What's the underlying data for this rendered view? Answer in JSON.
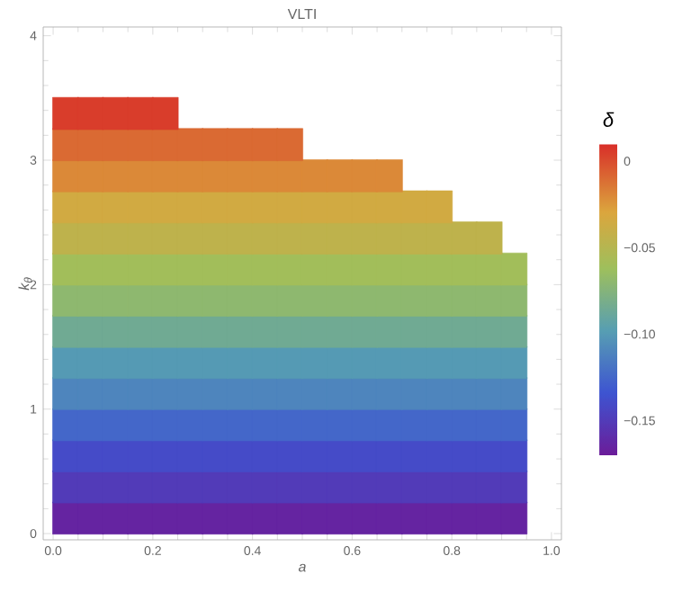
{
  "chart_data": {
    "type": "scatter",
    "title": "VLTI",
    "xlabel": "a",
    "ylabel": "k$_{θ}$",
    "clabel": "δ",
    "marker": "square",
    "xlim": [
      -0.02,
      1.02
    ],
    "ylim": [
      -0.05,
      4.07
    ],
    "xticks": [
      {
        "value": 0,
        "label": "0.0"
      },
      {
        "value": 0.2,
        "label": "0.2"
      },
      {
        "value": 0.4,
        "label": "0.4"
      },
      {
        "value": 0.6,
        "label": "0.6"
      },
      {
        "value": 0.8,
        "label": "0.8"
      },
      {
        "value": 1,
        "label": "1.0"
      }
    ],
    "yticks": [
      0,
      1,
      2,
      3,
      4
    ],
    "clim": [
      -0.17,
      0.01
    ],
    "cticks": [
      {
        "value": 0,
        "label": "0"
      },
      {
        "value": -0.05,
        "label": "−0.05"
      },
      {
        "value": -0.1,
        "label": "−0.10"
      },
      {
        "value": -0.15,
        "label": "−0.15"
      }
    ],
    "series": [
      {
        "x": [
          0.025,
          0.075,
          0.125,
          0.175,
          0.225,
          0.275,
          0.325,
          0.375,
          0.425,
          0.475,
          0.525,
          0.575,
          0.625,
          0.675,
          0.725,
          0.775,
          0.825,
          0.875,
          0.925
        ],
        "values": [
          0.125,
          0.125,
          0.125,
          0.125,
          0.125,
          0.125,
          0.125,
          0.125,
          0.125,
          0.125,
          0.125,
          0.125,
          0.125,
          0.125,
          0.125,
          0.125,
          0.125,
          0.125,
          0.125
        ],
        "cvalues": [
          -0.165,
          -0.165,
          -0.165,
          -0.165,
          -0.165,
          -0.165,
          -0.165,
          -0.165,
          -0.165,
          -0.165,
          -0.165,
          -0.165,
          -0.165,
          -0.165,
          -0.165,
          -0.165,
          -0.165,
          -0.165,
          -0.165
        ]
      },
      {
        "x": [
          0.025,
          0.075,
          0.125,
          0.175,
          0.225,
          0.275,
          0.325,
          0.375,
          0.425,
          0.475,
          0.525,
          0.575,
          0.625,
          0.675,
          0.725,
          0.775,
          0.825,
          0.875,
          0.925
        ],
        "values": [
          0.375,
          0.375,
          0.375,
          0.375,
          0.375,
          0.375,
          0.375,
          0.375,
          0.375,
          0.375,
          0.375,
          0.375,
          0.375,
          0.375,
          0.375,
          0.375,
          0.375,
          0.375,
          0.375
        ],
        "cvalues": [
          -0.15,
          -0.15,
          -0.15,
          -0.15,
          -0.15,
          -0.15,
          -0.15,
          -0.15,
          -0.15,
          -0.15,
          -0.15,
          -0.15,
          -0.15,
          -0.15,
          -0.15,
          -0.15,
          -0.15,
          -0.15,
          -0.15
        ]
      },
      {
        "x": [
          0.025,
          0.075,
          0.125,
          0.175,
          0.225,
          0.275,
          0.325,
          0.375,
          0.425,
          0.475,
          0.525,
          0.575,
          0.625,
          0.675,
          0.725,
          0.775,
          0.825,
          0.875,
          0.925
        ],
        "values": [
          0.625,
          0.625,
          0.625,
          0.625,
          0.625,
          0.625,
          0.625,
          0.625,
          0.625,
          0.625,
          0.625,
          0.625,
          0.625,
          0.625,
          0.625,
          0.625,
          0.625,
          0.625,
          0.625
        ],
        "cvalues": [
          -0.14,
          -0.14,
          -0.14,
          -0.14,
          -0.14,
          -0.14,
          -0.14,
          -0.14,
          -0.14,
          -0.14,
          -0.14,
          -0.14,
          -0.14,
          -0.14,
          -0.14,
          -0.14,
          -0.14,
          -0.14,
          -0.14
        ]
      },
      {
        "x": [
          0.025,
          0.075,
          0.125,
          0.175,
          0.225,
          0.275,
          0.325,
          0.375,
          0.425,
          0.475,
          0.525,
          0.575,
          0.625,
          0.675,
          0.725,
          0.775,
          0.825,
          0.875,
          0.925
        ],
        "values": [
          0.875,
          0.875,
          0.875,
          0.875,
          0.875,
          0.875,
          0.875,
          0.875,
          0.875,
          0.875,
          0.875,
          0.875,
          0.875,
          0.875,
          0.875,
          0.875,
          0.875,
          0.875,
          0.875
        ],
        "cvalues": [
          -0.125,
          -0.125,
          -0.125,
          -0.125,
          -0.125,
          -0.125,
          -0.125,
          -0.125,
          -0.125,
          -0.125,
          -0.125,
          -0.125,
          -0.125,
          -0.125,
          -0.125,
          -0.125,
          -0.125,
          -0.125,
          -0.125
        ]
      },
      {
        "x": [
          0.025,
          0.075,
          0.125,
          0.175,
          0.225,
          0.275,
          0.325,
          0.375,
          0.425,
          0.475,
          0.525,
          0.575,
          0.625,
          0.675,
          0.725,
          0.775,
          0.825,
          0.875,
          0.925
        ],
        "values": [
          1.125,
          1.125,
          1.125,
          1.125,
          1.125,
          1.125,
          1.125,
          1.125,
          1.125,
          1.125,
          1.125,
          1.125,
          1.125,
          1.125,
          1.125,
          1.125,
          1.125,
          1.125,
          1.125
        ],
        "cvalues": [
          -0.11,
          -0.11,
          -0.11,
          -0.11,
          -0.11,
          -0.11,
          -0.11,
          -0.11,
          -0.11,
          -0.11,
          -0.11,
          -0.11,
          -0.11,
          -0.11,
          -0.11,
          -0.11,
          -0.11,
          -0.11,
          -0.11
        ]
      },
      {
        "x": [
          0.025,
          0.075,
          0.125,
          0.175,
          0.225,
          0.275,
          0.325,
          0.375,
          0.425,
          0.475,
          0.525,
          0.575,
          0.625,
          0.675,
          0.725,
          0.775,
          0.825,
          0.875,
          0.925
        ],
        "values": [
          1.375,
          1.375,
          1.375,
          1.375,
          1.375,
          1.375,
          1.375,
          1.375,
          1.375,
          1.375,
          1.375,
          1.375,
          1.375,
          1.375,
          1.375,
          1.375,
          1.375,
          1.375,
          1.375
        ],
        "cvalues": [
          -0.1,
          -0.1,
          -0.1,
          -0.1,
          -0.1,
          -0.1,
          -0.1,
          -0.1,
          -0.1,
          -0.1,
          -0.1,
          -0.1,
          -0.1,
          -0.1,
          -0.1,
          -0.1,
          -0.1,
          -0.1,
          -0.1
        ]
      },
      {
        "x": [
          0.025,
          0.075,
          0.125,
          0.175,
          0.225,
          0.275,
          0.325,
          0.375,
          0.425,
          0.475,
          0.525,
          0.575,
          0.625,
          0.675,
          0.725,
          0.775,
          0.825,
          0.875,
          0.925
        ],
        "values": [
          1.625,
          1.625,
          1.625,
          1.625,
          1.625,
          1.625,
          1.625,
          1.625,
          1.625,
          1.625,
          1.625,
          1.625,
          1.625,
          1.625,
          1.625,
          1.625,
          1.625,
          1.625,
          1.625
        ],
        "cvalues": [
          -0.085,
          -0.085,
          -0.085,
          -0.085,
          -0.085,
          -0.085,
          -0.085,
          -0.085,
          -0.085,
          -0.085,
          -0.085,
          -0.085,
          -0.085,
          -0.085,
          -0.085,
          -0.085,
          -0.085,
          -0.085,
          -0.085
        ]
      },
      {
        "x": [
          0.025,
          0.075,
          0.125,
          0.175,
          0.225,
          0.275,
          0.325,
          0.375,
          0.425,
          0.475,
          0.525,
          0.575,
          0.625,
          0.675,
          0.725,
          0.775,
          0.825,
          0.875,
          0.925
        ],
        "values": [
          1.875,
          1.875,
          1.875,
          1.875,
          1.875,
          1.875,
          1.875,
          1.875,
          1.875,
          1.875,
          1.875,
          1.875,
          1.875,
          1.875,
          1.875,
          1.875,
          1.875,
          1.875,
          1.875
        ],
        "cvalues": [
          -0.07,
          -0.07,
          -0.07,
          -0.07,
          -0.07,
          -0.07,
          -0.07,
          -0.07,
          -0.07,
          -0.07,
          -0.07,
          -0.07,
          -0.07,
          -0.07,
          -0.07,
          -0.07,
          -0.07,
          -0.07,
          -0.07
        ]
      },
      {
        "x": [
          0.025,
          0.075,
          0.125,
          0.175,
          0.225,
          0.275,
          0.325,
          0.375,
          0.425,
          0.475,
          0.525,
          0.575,
          0.625,
          0.675,
          0.725,
          0.775,
          0.825,
          0.875,
          0.925
        ],
        "values": [
          2.125,
          2.125,
          2.125,
          2.125,
          2.125,
          2.125,
          2.125,
          2.125,
          2.125,
          2.125,
          2.125,
          2.125,
          2.125,
          2.125,
          2.125,
          2.125,
          2.125,
          2.125,
          2.125
        ],
        "cvalues": [
          -0.06,
          -0.06,
          -0.06,
          -0.06,
          -0.06,
          -0.06,
          -0.06,
          -0.06,
          -0.06,
          -0.06,
          -0.06,
          -0.06,
          -0.06,
          -0.06,
          -0.06,
          -0.06,
          -0.06,
          -0.06,
          -0.06
        ]
      },
      {
        "x": [
          0.025,
          0.075,
          0.125,
          0.175,
          0.225,
          0.275,
          0.325,
          0.375,
          0.425,
          0.475,
          0.525,
          0.575,
          0.625,
          0.675,
          0.725,
          0.775,
          0.825,
          0.875
        ],
        "values": [
          2.375,
          2.375,
          2.375,
          2.375,
          2.375,
          2.375,
          2.375,
          2.375,
          2.375,
          2.375,
          2.375,
          2.375,
          2.375,
          2.375,
          2.375,
          2.375,
          2.375,
          2.375
        ],
        "cvalues": [
          -0.045,
          -0.045,
          -0.045,
          -0.045,
          -0.045,
          -0.045,
          -0.045,
          -0.045,
          -0.045,
          -0.045,
          -0.045,
          -0.045,
          -0.045,
          -0.045,
          -0.045,
          -0.045,
          -0.045,
          -0.045
        ]
      },
      {
        "x": [
          0.025,
          0.075,
          0.125,
          0.175,
          0.225,
          0.275,
          0.325,
          0.375,
          0.425,
          0.475,
          0.525,
          0.575,
          0.625,
          0.675,
          0.725,
          0.775
        ],
        "values": [
          2.625,
          2.625,
          2.625,
          2.625,
          2.625,
          2.625,
          2.625,
          2.625,
          2.625,
          2.625,
          2.625,
          2.625,
          2.625,
          2.625,
          2.625,
          2.625
        ],
        "cvalues": [
          -0.035,
          -0.035,
          -0.035,
          -0.035,
          -0.035,
          -0.035,
          -0.035,
          -0.035,
          -0.035,
          -0.035,
          -0.035,
          -0.035,
          -0.035,
          -0.035,
          -0.035,
          -0.035
        ]
      },
      {
        "x": [
          0.025,
          0.075,
          0.125,
          0.175,
          0.225,
          0.275,
          0.325,
          0.375,
          0.425,
          0.475,
          0.525,
          0.575,
          0.625,
          0.675
        ],
        "values": [
          2.875,
          2.875,
          2.875,
          2.875,
          2.875,
          2.875,
          2.875,
          2.875,
          2.875,
          2.875,
          2.875,
          2.875,
          2.875,
          2.875
        ],
        "cvalues": [
          -0.02,
          -0.02,
          -0.02,
          -0.02,
          -0.02,
          -0.02,
          -0.02,
          -0.02,
          -0.02,
          -0.02,
          -0.02,
          -0.02,
          -0.02,
          -0.02
        ]
      },
      {
        "x": [
          0.025,
          0.075,
          0.125,
          0.175,
          0.225,
          0.275,
          0.325,
          0.375,
          0.425,
          0.475
        ],
        "values": [
          3.125,
          3.125,
          3.125,
          3.125,
          3.125,
          3.125,
          3.125,
          3.125,
          3.125,
          3.125
        ],
        "cvalues": [
          -0.01,
          -0.01,
          -0.01,
          -0.01,
          -0.01,
          -0.01,
          -0.01,
          -0.01,
          -0.01,
          -0.01
        ]
      },
      {
        "x": [
          0.025,
          0.075,
          0.125,
          0.175,
          0.225
        ],
        "values": [
          3.375,
          3.375,
          3.375,
          3.375,
          3.375
        ],
        "cvalues": [
          0.005,
          0.005,
          0.005,
          0.005,
          0.005
        ]
      }
    ]
  }
}
